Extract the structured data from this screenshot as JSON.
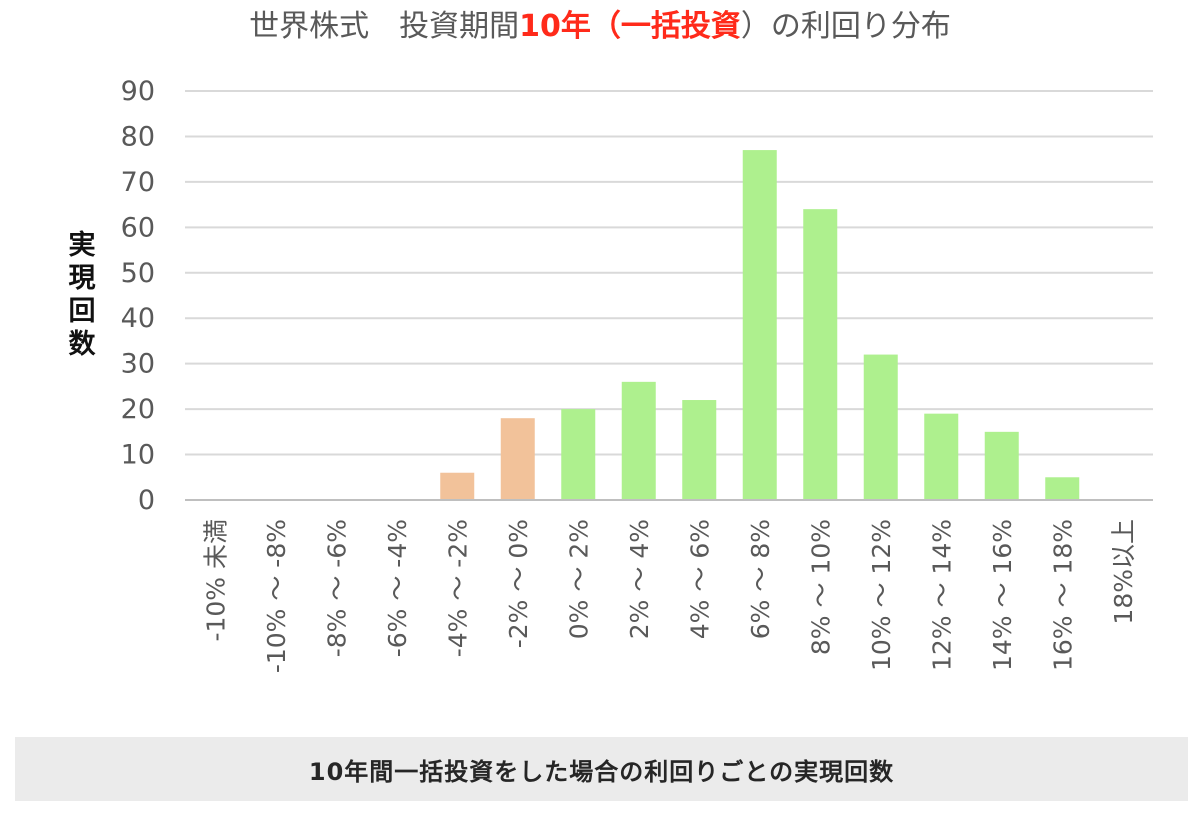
{
  "chart_data": {
    "type": "bar",
    "title_parts": [
      {
        "text": "世界株式　投資期間",
        "accent": false
      },
      {
        "text": "10年（一括投資",
        "accent": true
      },
      {
        "text": "）の利回り分布",
        "accent": false
      }
    ],
    "ylabel": "実現回数",
    "xlabel": "",
    "ylim": [
      0,
      90
    ],
    "yticks": [
      0,
      10,
      20,
      30,
      40,
      50,
      60,
      70,
      80,
      90
    ],
    "grid": true,
    "categories": [
      "-10% 未満",
      "-10% ～ -8%",
      "-8% ～ -6%",
      "-6% ～ -4%",
      "-4% ～ -2%",
      "-2% ～ 0%",
      "0% ～ 2%",
      "2% ～ 4%",
      "4% ～ 6%",
      "6% ～ 8%",
      "8% ～ 10%",
      "10% ～ 12%",
      "12% ～ 14%",
      "14% ～ 16%",
      "16% ～ 18%",
      "18%以上"
    ],
    "values": [
      0,
      0,
      0,
      0,
      6,
      18,
      20,
      26,
      22,
      77,
      64,
      32,
      19,
      15,
      5,
      0
    ],
    "colors": {
      "negative": "#f2c29a",
      "positive": "#aef08e",
      "grid": "#d9d9d9",
      "axis": "#bfbfbf",
      "title_accent": "#ff2a1a"
    }
  },
  "caption": "10年間一括投資をした場合の利回りごとの実現回数"
}
